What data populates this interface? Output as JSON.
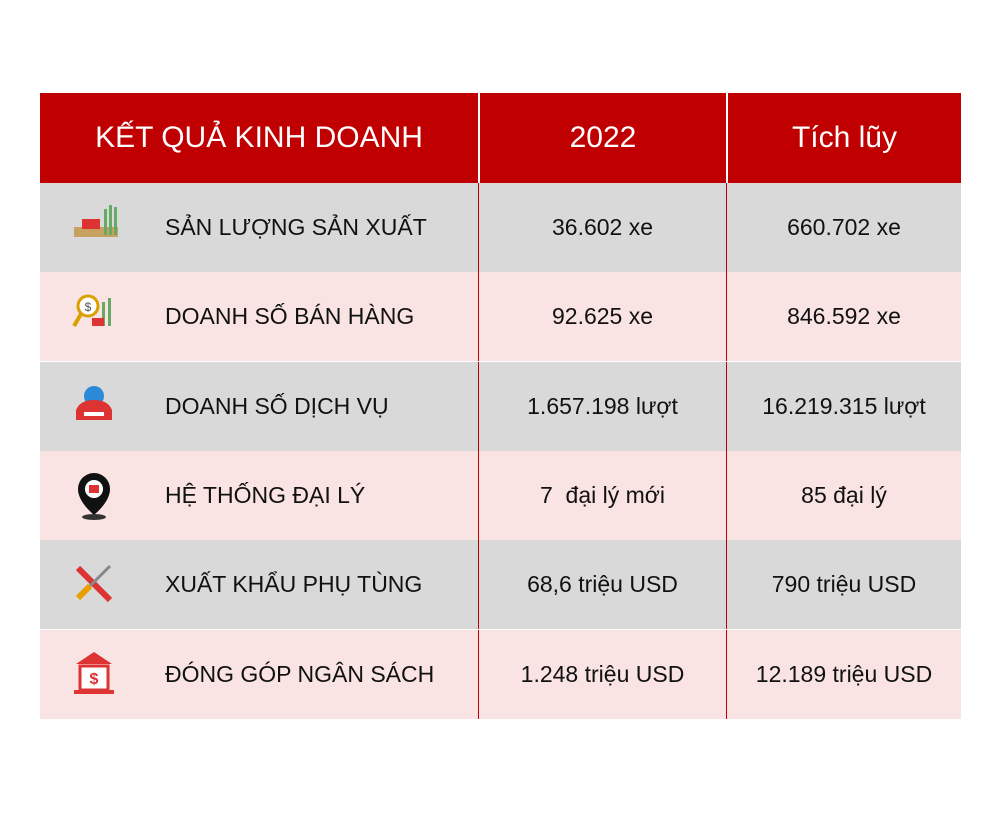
{
  "header": {
    "columns": [
      "KẾT QUẢ KINH DOANH",
      "2022",
      "Tích lũy"
    ]
  },
  "table": {
    "rows": [
      [
        "SẢN LƯỢNG SẢN XUẤT",
        "36.602 xe",
        "660.702 xe"
      ],
      [
        "DOANH SỐ BÁN HÀNG",
        "92.625 xe",
        "846.592 xe"
      ],
      [
        "DOANH SỐ DỊCH VỤ",
        "1.657.198 lượt",
        "16.219.315 lượt"
      ],
      [
        "HỆ THỐNG ĐẠI LÝ",
        "7  đại lý mới",
        "85 đại lý"
      ],
      [
        "XUẤT KHẨU PHỤ TÙNG",
        "68,6 triệu USD",
        "790 triệu USD"
      ],
      [
        "ĐÓNG GÓP NGÂN SÁCH",
        "1.248 triệu USD",
        "12.189 triệu USD"
      ]
    ]
  }
}
